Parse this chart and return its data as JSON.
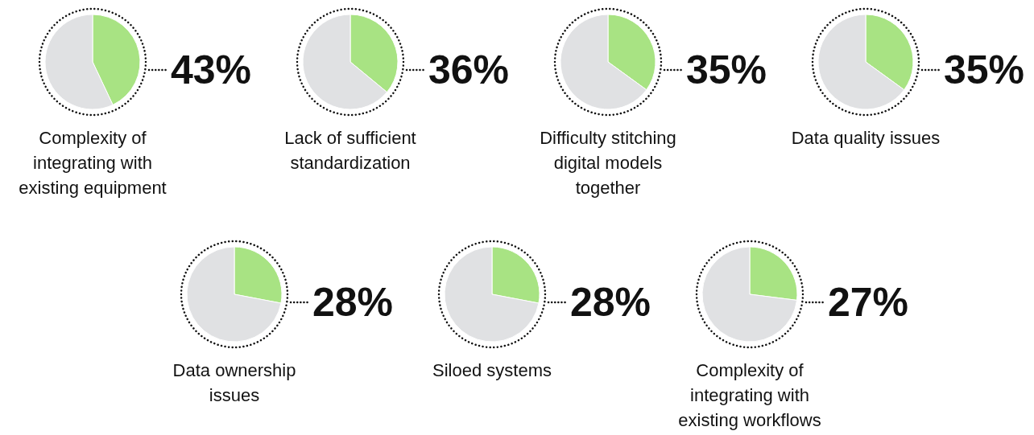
{
  "chart_data": [
    {
      "type": "pie",
      "title": "Complexity of integrating with existing equipment",
      "categories": [
        null,
        null
      ],
      "values": [
        43,
        57
      ],
      "colors": [
        "#a8e383",
        "#e0e1e3"
      ],
      "value_labels": [
        "43%",
        null
      ]
    },
    {
      "type": "pie",
      "title": "Lack of sufficient standardization",
      "categories": [
        null,
        null
      ],
      "values": [
        36,
        64
      ],
      "colors": [
        "#a8e383",
        "#e0e1e3"
      ],
      "value_labels": [
        "36%",
        null
      ]
    },
    {
      "type": "pie",
      "title": "Difficulty stitching digital models together",
      "categories": [
        null,
        null
      ],
      "values": [
        35,
        65
      ],
      "colors": [
        "#a8e383",
        "#e0e1e3"
      ],
      "value_labels": [
        "35%",
        null
      ]
    },
    {
      "type": "pie",
      "title": "Data quality issues",
      "categories": [
        null,
        null
      ],
      "values": [
        35,
        65
      ],
      "colors": [
        "#a8e383",
        "#e0e1e3"
      ],
      "value_labels": [
        "35%",
        null
      ]
    },
    {
      "type": "pie",
      "title": "Data ownership issues",
      "categories": [
        null,
        null
      ],
      "values": [
        28,
        72
      ],
      "colors": [
        "#a8e383",
        "#e0e1e3"
      ],
      "value_labels": [
        "28%",
        null
      ]
    },
    {
      "type": "pie",
      "title": "Siloed systems",
      "categories": [
        null,
        null
      ],
      "values": [
        28,
        72
      ],
      "colors": [
        "#a8e383",
        "#e0e1e3"
      ],
      "value_labels": [
        "28%",
        null
      ]
    },
    {
      "type": "pie",
      "title": "Complexity of integrating with existing workflows",
      "categories": [
        null,
        null
      ],
      "values": [
        27,
        73
      ],
      "colors": [
        "#a8e383",
        "#e0e1e3"
      ],
      "value_labels": [
        "27%",
        null
      ]
    }
  ]
}
